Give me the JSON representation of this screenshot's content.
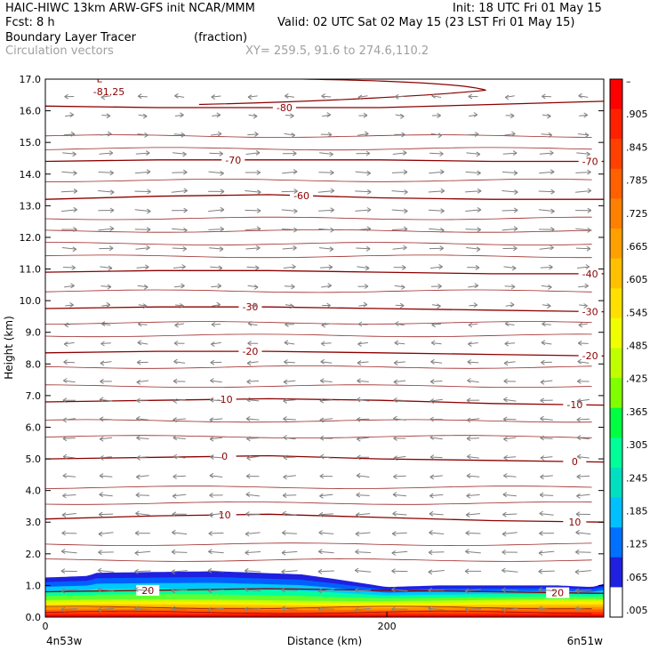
{
  "header": {
    "line1_left": "HAIC-HIWC 13km ARW-GFS init    NCAR/MMM",
    "line1_right": "Init: 18 UTC Fri 01 May 15",
    "line2_left": "Fcst:     8 h",
    "line2_right": "Valid: 02 UTC Sat 02 May 15 (23 LST Fri 01 May 15)",
    "field_name": "Boundary Layer Tracer",
    "field_units": "(fraction)",
    "vector_name": "Circulation vectors",
    "xy_text": "XY= 259.5, 91.6 to 274.6,110.2"
  },
  "chart_data": {
    "type": "heatmap",
    "xlabel": "Distance (km)",
    "ylabel": "Height (km)",
    "xlim": [
      0,
      327
    ],
    "ylim": [
      0,
      17
    ],
    "x_ticks": [
      {
        "value": 0,
        "label": "0"
      },
      {
        "value": 200,
        "label": "200"
      }
    ],
    "x_endpoint_labels": {
      "left": "4n53w",
      "right": "6n51w"
    },
    "y_ticks": [
      "0.0",
      "1.0",
      "2.0",
      "3.0",
      "4.0",
      "5.0",
      "6.0",
      "7.0",
      "8.0",
      "9.0",
      "10.0",
      "11.0",
      "12.0",
      "13.0",
      "14.0",
      "15.0",
      "16.0",
      "17.0"
    ],
    "colorbar_labels": [
      "–",
      ".905",
      ".845",
      ".785",
      ".725",
      ".665",
      ".605",
      ".545",
      ".485",
      ".425",
      ".365",
      ".305",
      ".245",
      ".185",
      ".125",
      ".065",
      ".005"
    ],
    "colorbar_colors": [
      "#ff0000",
      "#ff2000",
      "#ff4000",
      "#ff6000",
      "#ff8000",
      "#ffa000",
      "#ffc000",
      "#ffe000",
      "#f0ff00",
      "#c0ff00",
      "#80ff00",
      "#00ff40",
      "#00ff99",
      "#00e0c0",
      "#00c0ff",
      "#0070ff",
      "#2020e0",
      "#ffffff"
    ],
    "contour_color": "#8b0000",
    "vector_color": "#808080",
    "tracer_top_km": [
      [
        0,
        1.25
      ],
      [
        25,
        1.3
      ],
      [
        30,
        1.4
      ],
      [
        100,
        1.45
      ],
      [
        150,
        1.35
      ],
      [
        170,
        1.2
      ],
      [
        200,
        0.95
      ],
      [
        230,
        1.0
      ],
      [
        300,
        1.0
      ],
      [
        320,
        0.95
      ],
      [
        327,
        1.05
      ]
    ],
    "isotherms": [
      {
        "label": "20",
        "y": [
          0.8,
          0.85,
          0.9,
          0.85,
          0.8,
          0.75
        ],
        "label_x": [
          60,
          300
        ]
      },
      {
        "label": "10",
        "y": [
          3.1,
          3.2,
          3.25,
          3.15,
          3.05,
          3.0
        ],
        "label_x": [
          105,
          310
        ]
      },
      {
        "label": "0",
        "y": [
          5.0,
          5.05,
          5.1,
          5.0,
          4.95,
          4.9
        ],
        "label_x": [
          105,
          310
        ]
      },
      {
        "label": "-10",
        "y": [
          6.8,
          6.85,
          6.9,
          6.85,
          6.75,
          6.7
        ],
        "label_x": [
          105,
          310
        ]
      },
      {
        "label": "-20",
        "y": [
          8.35,
          8.4,
          8.4,
          8.35,
          8.3,
          8.25
        ],
        "label_x": [
          120,
          320
        ]
      },
      {
        "label": "-30",
        "y": [
          9.75,
          9.8,
          9.8,
          9.75,
          9.7,
          9.65
        ],
        "label_x": [
          120,
          320
        ]
      },
      {
        "label": "-40",
        "y": [
          10.9,
          10.95,
          10.95,
          10.9,
          10.85,
          10.85
        ],
        "label_x": [
          330,
          330
        ]
      },
      {
        "label": "-60",
        "y": [
          13.2,
          13.3,
          13.35,
          13.25,
          13.2,
          13.2
        ],
        "label_x": [
          150,
          150
        ]
      },
      {
        "label": "-70",
        "y": [
          14.4,
          14.45,
          14.45,
          14.45,
          14.4,
          14.4
        ],
        "label_x": [
          110,
          330
        ]
      },
      {
        "label": "-80",
        "y": [
          16.15,
          16.1,
          16.1,
          16.1,
          16.2,
          16.3
        ],
        "label_x": [
          140,
          140
        ]
      }
    ],
    "minimum_label": {
      "symbol": "L",
      "value": "-81.25"
    },
    "thin_contours_km": [
      0.15,
      0.3,
      1.8,
      2.3,
      3.6,
      4.1,
      5.7,
      6.2,
      7.3,
      7.9,
      8.9,
      9.3,
      10.3,
      11.4,
      11.8,
      12.2,
      12.6,
      13.8,
      14.8,
      15.2
    ],
    "wind_u_by_height": [
      [
        0,
        -1
      ],
      [
        1.5,
        -1
      ],
      [
        3,
        -0.8
      ],
      [
        5,
        -0.5
      ],
      [
        6.5,
        -0.6
      ],
      [
        8,
        -0.4
      ],
      [
        9.5,
        -0.1
      ],
      [
        11,
        0.5
      ],
      [
        12,
        0.9
      ],
      [
        13.5,
        1
      ],
      [
        14.5,
        0.8
      ],
      [
        15.5,
        0.2
      ],
      [
        16.5,
        -0.2
      ],
      [
        17,
        -0.2
      ]
    ]
  }
}
